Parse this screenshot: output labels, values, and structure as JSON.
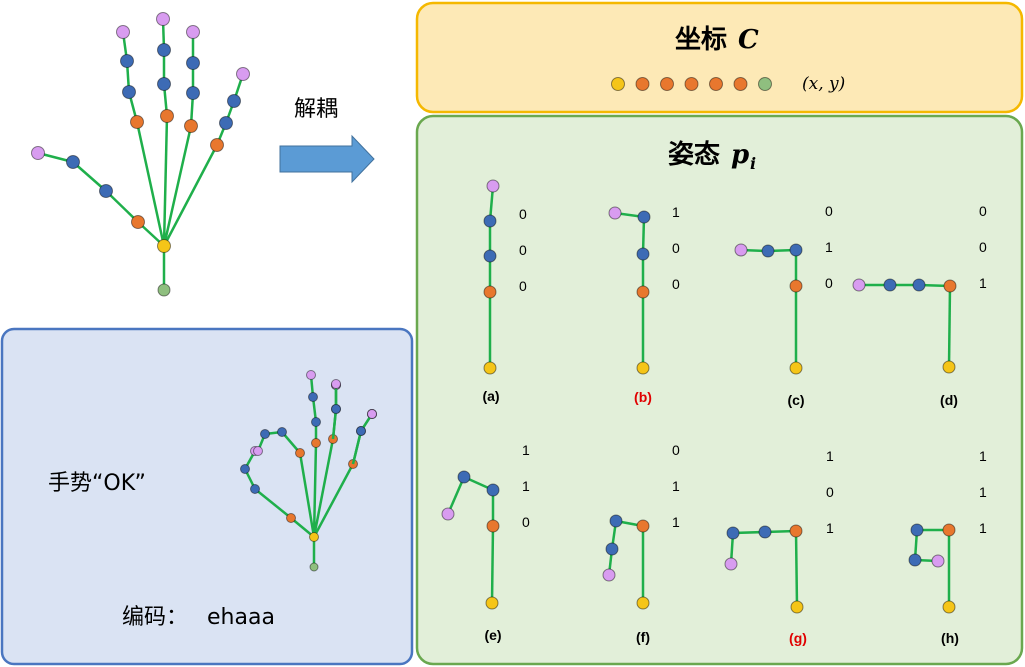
{
  "decouple_label": "解耦",
  "coordinate_panel": {
    "title": "坐标",
    "symbol": "C",
    "xy_label": "(x, y)",
    "point_colors": [
      "#f5c518",
      "#e8772e",
      "#e8772e",
      "#e8772e",
      "#e8772e",
      "#e8772e",
      "#8fbf7f"
    ]
  },
  "posture_panel": {
    "title": "姿态",
    "symbol": "p",
    "subscript": "i"
  },
  "gesture_panel": {
    "title": "手势“OK”",
    "code_label": "编码：",
    "code_value": "ehaaa"
  },
  "postures": [
    {
      "label": "(a)",
      "bits": [
        "0",
        "0",
        "0"
      ],
      "highlight": false
    },
    {
      "label": "(b)",
      "bits": [
        "1",
        "0",
        "0"
      ],
      "highlight": true
    },
    {
      "label": "(c)",
      "bits": [
        "0",
        "1",
        "0"
      ],
      "highlight": false
    },
    {
      "label": "(d)",
      "bits": [
        "0",
        "0",
        "1"
      ],
      "highlight": false
    },
    {
      "label": "(e)",
      "bits": [
        "1",
        "1",
        "0"
      ],
      "highlight": false
    },
    {
      "label": "(f)",
      "bits": [
        "0",
        "1",
        "1"
      ],
      "highlight": false
    },
    {
      "label": "(g)",
      "bits": [
        "1",
        "0",
        "1"
      ],
      "highlight": true
    },
    {
      "label": "(h)",
      "bits": [
        "1",
        "1",
        "1"
      ],
      "highlight": false
    }
  ],
  "colors": {
    "bone": "#1faf4b",
    "tip": "#d89cf0",
    "joint_blue": "#3d6bb5",
    "joint_orange": "#e8772e",
    "palm_center": "#f5c518",
    "wrist": "#8fbf7f",
    "highlight_label": "#e00000",
    "coord_bg": "#fde9b6",
    "coord_border": "#f5b800",
    "posture_bg": "#e2efd9",
    "posture_border": "#6aa84f",
    "gesture_bg": "#dae3f3",
    "gesture_border": "#4a76c0",
    "arrow": "#5b9bd5"
  }
}
